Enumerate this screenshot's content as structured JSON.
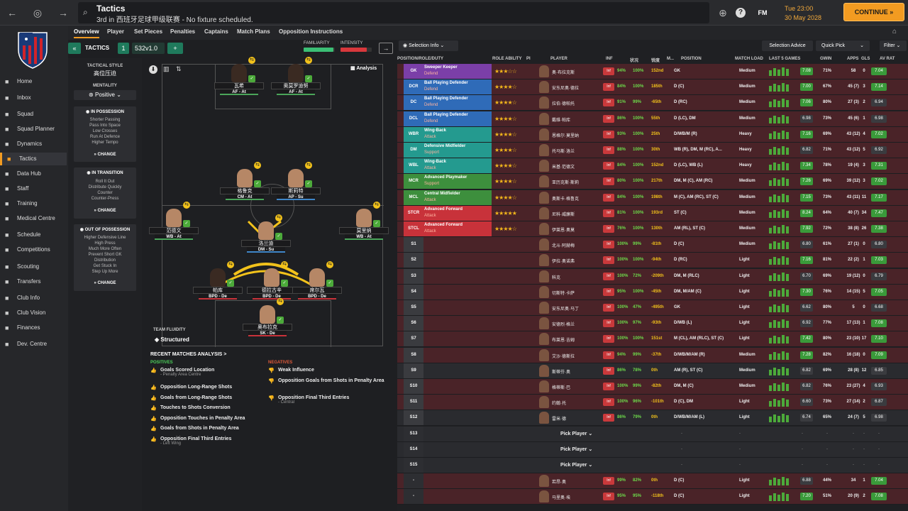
{
  "topbar": {
    "title": "Tactics",
    "subtitle": "3rd in 西班牙足球甲级联赛 - No fixture scheduled.",
    "time": "Tue 23:00",
    "date": "30 May 2028",
    "continue": "CONTINUE",
    "fm": "FM"
  },
  "sidebar": {
    "items": [
      {
        "label": "Home",
        "icon": "home-icon"
      },
      {
        "label": "Inbox",
        "icon": "inbox-icon"
      },
      {
        "label": "Squad",
        "icon": "squad-icon"
      },
      {
        "label": "Squad Planner",
        "icon": "planner-icon"
      },
      {
        "label": "Dynamics",
        "icon": "dynamics-icon"
      },
      {
        "label": "Tactics",
        "icon": "tactics-icon",
        "active": true
      },
      {
        "label": "Data Hub",
        "icon": "data-hub-icon"
      },
      {
        "label": "Staff",
        "icon": "staff-icon"
      },
      {
        "label": "Training",
        "icon": "training-icon"
      },
      {
        "label": "Medical Centre",
        "icon": "medical-icon"
      },
      {
        "label": "Schedule",
        "icon": "schedule-icon"
      },
      {
        "label": "Competitions",
        "icon": "trophy-icon"
      },
      {
        "label": "Scouting",
        "icon": "scouting-icon"
      },
      {
        "label": "Transfers",
        "icon": "transfers-icon"
      },
      {
        "label": "Club Info",
        "icon": "club-info-icon"
      },
      {
        "label": "Club Vision",
        "icon": "vision-icon"
      },
      {
        "label": "Finances",
        "icon": "finances-icon"
      },
      {
        "label": "Dev. Centre",
        "icon": "dev-centre-icon"
      }
    ]
  },
  "tabs": [
    "Overview",
    "Player",
    "Set Pieces",
    "Penalties",
    "Captains",
    "Match Plans",
    "Opposition Instructions"
  ],
  "tacbar": {
    "label": "TACTICS",
    "slot": "1",
    "formation": "532v1.0",
    "familiarity": "FAMILIARITY",
    "intensity": "INTENSITY",
    "familiarity_level": 0.95,
    "intensity_level": 0.85,
    "selection_info": "Selection Info",
    "selection_advice": "Selection Advice",
    "quick_pick": "Quick Pick",
    "filter": "Filter",
    "analysis": "Analysis"
  },
  "leftpanel": {
    "style_h": "TACTICAL STYLE",
    "style_v": "高位压迫",
    "mentality_h": "MENTALITY",
    "mentality_v": "Positive",
    "in_possession": {
      "title": "IN POSSESSION",
      "items": [
        "Shorter Passing",
        "Pass Into Space",
        "Low Crosses",
        "Run At Defence",
        "Higher Tempo"
      ]
    },
    "in_transition": {
      "title": "IN TRANSITION",
      "items": [
        "Roll It Out",
        "Distribute Quickly",
        "Counter",
        "Counter-Press"
      ]
    },
    "out_of_possession": {
      "title": "OUT OF POSSESSION",
      "items": [
        "Higher Defensive Line",
        "High Press",
        "Much More Often",
        "Prevent Short GK",
        "Distribution",
        "Get Stuck In",
        "Step Up More"
      ]
    },
    "change": "CHANGE"
  },
  "pitch": {
    "fluidity_h": "TEAM FLUIDITY",
    "fluidity_v": "Structured",
    "players": [
      {
        "name": "瓦希",
        "role": "AF - At"
      },
      {
        "name": "奥莫罗迪努",
        "role": "AF - At"
      },
      {
        "name": "格鲁克",
        "role": "CM - At"
      },
      {
        "name": "斯莉特",
        "role": "AP - Su"
      },
      {
        "name": "范德文",
        "role": "WB - At"
      },
      {
        "name": "洛兰迪",
        "role": "DM - Su"
      },
      {
        "name": "莫里纳",
        "role": "WB - At"
      },
      {
        "name": "帕库",
        "role": "BPD - De"
      },
      {
        "name": "德拉古辛",
        "role": "BPD - De"
      },
      {
        "name": "席尔瓦",
        "role": "BPD - De"
      },
      {
        "name": "奥布拉克",
        "role": "SK - De"
      }
    ]
  },
  "analysis": {
    "title": "RECENT MATCHES ANALYSIS >",
    "pos_title": "POSITIVES",
    "neg_title": "NEGATIVES",
    "positives": [
      {
        "t": "Goals Scored Location",
        "s": "- Penalty Area Centre"
      },
      {
        "t": "Opposition Long-Range Shots",
        "s": ""
      },
      {
        "t": "Goals from Long-Range Shots",
        "s": ""
      },
      {
        "t": "Touches to Shots Conversion",
        "s": ""
      },
      {
        "t": "Opposition Touches in Penalty Area",
        "s": ""
      },
      {
        "t": "Goals from Shots in Penalty Area",
        "s": ""
      },
      {
        "t": "Opposition Final Third Entries",
        "s": "- Left Wing"
      }
    ],
    "negatives": [
      {
        "t": "Weak Influence",
        "s": ""
      },
      {
        "t": "Opposition Goals from Shots in Penalty Area",
        "s": ""
      },
      {
        "t": "Opposition Final Third Entries",
        "s": "- Central"
      }
    ]
  },
  "table": {
    "headers": [
      "POSITION/ROLE/DUTY",
      "ROLE ABILITY",
      "PI",
      "PLAYER",
      "INF",
      "状况",
      "锐度",
      "M...",
      "POSITION",
      "MATCH LOAD",
      "LAST 5 GAMES",
      "GWIN",
      "APPS",
      "GLS",
      "AV RAT"
    ],
    "rows": [
      {
        "pos": "GK",
        "role": "Sweeper Keeper",
        "duty": "Defend",
        "color": "#7b3fa8",
        "stars": "★★★☆☆",
        "name": "奥·布拉克斯",
        "cond": "94%",
        "sharp": "100%",
        "d": "152nd",
        "ppos": "GK",
        "load": "Medium",
        "avr": "7.08",
        "gw": "71%",
        "apps": "58",
        "gls": "0",
        "avrat": "7.04"
      },
      {
        "pos": "DCR",
        "role": "Ball Playing Defender",
        "duty": "Defend",
        "color": "#2f6bb8",
        "stars": "★★★★☆",
        "name": "安东尼奥·德拉",
        "cond": "84%",
        "sharp": "100%",
        "d": "185th",
        "ppos": "D (C)",
        "load": "Medium",
        "avr": "7.00",
        "gw": "67%",
        "apps": "45 (7)",
        "gls": "3",
        "avrat": "7.14"
      },
      {
        "pos": "DC",
        "role": "Ball Playing Defender",
        "duty": "Defend",
        "color": "#2f6bb8",
        "stars": "★★★★☆",
        "name": "拉伯·德帕托",
        "cond": "91%",
        "sharp": "99%",
        "d": "-65th",
        "ppos": "D (RC)",
        "load": "Medium",
        "avr": "7.06",
        "gw": "80%",
        "apps": "27 (3)",
        "gls": "2",
        "avrat": "6.94"
      },
      {
        "pos": "DCL",
        "role": "Ball Playing Defender",
        "duty": "Defend",
        "color": "#2f6bb8",
        "stars": "★★★★☆",
        "name": "戴维·帕库",
        "cond": "86%",
        "sharp": "100%",
        "d": "55th",
        "ppos": "D (LC), DM",
        "load": "Medium",
        "avr": "6.98",
        "gw": "73%",
        "apps": "45 (6)",
        "gls": "1",
        "avrat": "6.98"
      },
      {
        "pos": "WBR",
        "role": "Wing-Back",
        "duty": "Attack",
        "color": "#249a8f",
        "stars": "★★★★☆",
        "name": "恩格尔·莫里纳",
        "cond": "93%",
        "sharp": "100%",
        "d": "25th",
        "ppos": "D/WB/M (R)",
        "load": "Heavy",
        "avr": "7.16",
        "gw": "69%",
        "apps": "43 (12)",
        "gls": "4",
        "avrat": "7.02"
      },
      {
        "pos": "DM",
        "role": "Defensive Midfielder",
        "duty": "Support",
        "color": "#249a8f",
        "stars": "★★★★☆",
        "name": "托马斯·洛兰",
        "cond": "88%",
        "sharp": "100%",
        "d": "30th",
        "ppos": "WB (R), DM, M (RC), A...",
        "load": "Heavy",
        "avr": "6.82",
        "gw": "71%",
        "apps": "43 (12)",
        "gls": "5",
        "avrat": "6.92"
      },
      {
        "pos": "WBL",
        "role": "Wing-Back",
        "duty": "Attack",
        "color": "#249a8f",
        "stars": "★★★★☆",
        "name": "米基·范德文",
        "cond": "84%",
        "sharp": "100%",
        "d": "152nd",
        "ppos": "D (LC), WB (L)",
        "load": "Heavy",
        "avr": "7.34",
        "gw": "78%",
        "apps": "19 (4)",
        "gls": "3",
        "avrat": "7.31"
      },
      {
        "pos": "MCR",
        "role": "Advanced Playmaker",
        "duty": "Support",
        "color": "#3d8f3d",
        "stars": "★★★★☆",
        "name": "亚历克斯·斯莉",
        "cond": "80%",
        "sharp": "100%",
        "d": "217th",
        "ppos": "DM, M (C), AM (RC)",
        "load": "Medium",
        "avr": "7.26",
        "gw": "69%",
        "apps": "39 (12)",
        "gls": "3",
        "avrat": "7.02"
      },
      {
        "pos": "MCL",
        "role": "Central Midfielder",
        "duty": "Attack",
        "color": "#3d8f3d",
        "stars": "★★★★☆",
        "name": "奥斯卡·格鲁克",
        "cond": "84%",
        "sharp": "100%",
        "d": "198th",
        "ppos": "M (C), AM (RC), ST (C)",
        "load": "Medium",
        "avr": "7.15",
        "gw": "73%",
        "apps": "43 (11)",
        "gls": "11",
        "avrat": "7.17"
      },
      {
        "pos": "STCR",
        "role": "Advanced Forward",
        "duty": "Attack",
        "color": "#c8323a",
        "stars": "★★★★★",
        "name": "尼科·威廉斯",
        "cond": "81%",
        "sharp": "100%",
        "d": "193rd",
        "ppos": "ST (C)",
        "load": "Medium",
        "avr": "8.24",
        "gw": "64%",
        "apps": "40 (7)",
        "gls": "34",
        "avrat": "7.47"
      },
      {
        "pos": "STCL",
        "role": "Advanced Forward",
        "duty": "Attack",
        "color": "#c8323a",
        "stars": "★★★★☆",
        "name": "伊莱恩·奥莫",
        "cond": "76%",
        "sharp": "100%",
        "d": "130th",
        "ppos": "AM (RL), ST (C)",
        "load": "Medium",
        "avr": "7.92",
        "gw": "72%",
        "apps": "38 (8)",
        "gls": "26",
        "avrat": "7.38"
      },
      {
        "pos": "S1",
        "name": "北斗·阿赫梅",
        "cond": "100%",
        "sharp": "99%",
        "d": "-81th",
        "ppos": "D (C)",
        "load": "Medium",
        "avr": "6.80",
        "gw": "61%",
        "apps": "27 (1)",
        "gls": "0",
        "avrat": "6.80"
      },
      {
        "pos": "S2",
        "name": "伊拉·奥诺弗",
        "cond": "100%",
        "sharp": "100%",
        "d": "-94th",
        "ppos": "D (RC)",
        "load": "Light",
        "avr": "7.16",
        "gw": "81%",
        "apps": "22 (2)",
        "gls": "1",
        "avrat": "7.03"
      },
      {
        "pos": "S3",
        "name": "科克",
        "cond": "100%",
        "sharp": "72%",
        "d": "-209th",
        "ppos": "DM, M (RLC)",
        "load": "Light",
        "avr": "6.70",
        "gw": "69%",
        "apps": "19 (12)",
        "gls": "0",
        "avrat": "6.79"
      },
      {
        "pos": "S4",
        "name": "切斯特·卡萨",
        "cond": "95%",
        "sharp": "100%",
        "d": "-45th",
        "ppos": "DM, M/AM (C)",
        "load": "Light",
        "avr": "7.30",
        "gw": "76%",
        "apps": "14 (15)",
        "gls": "5",
        "avrat": "7.05"
      },
      {
        "pos": "S5",
        "name": "安东尼奥·马丁",
        "cond": "100%",
        "sharp": "47%",
        "d": "-495th",
        "ppos": "GK",
        "load": "Light",
        "avr": "6.62",
        "gw": "80%",
        "apps": "5",
        "gls": "0",
        "avrat": "6.68"
      },
      {
        "pos": "S6",
        "name": "安德烈·格兰",
        "cond": "100%",
        "sharp": "97%",
        "d": "-93th",
        "ppos": "D/WB (L)",
        "load": "Light",
        "avr": "6.92",
        "gw": "77%",
        "apps": "17 (13)",
        "gls": "1",
        "avrat": "7.08"
      },
      {
        "pos": "S7",
        "name": "布莱恩·吉姆",
        "cond": "100%",
        "sharp": "100%",
        "d": "151st",
        "ppos": "M (CL), AM (RLC), ST (C)",
        "load": "Light",
        "avr": "7.42",
        "gw": "80%",
        "apps": "23 (10)",
        "gls": "17",
        "avrat": "7.10"
      },
      {
        "pos": "S8",
        "name": "艾沙·德斯拉",
        "cond": "94%",
        "sharp": "99%",
        "d": "-37th",
        "ppos": "D/WB/M/AM (R)",
        "load": "Medium",
        "avr": "7.28",
        "gw": "82%",
        "apps": "16 (18)",
        "gls": "0",
        "avrat": "7.09"
      },
      {
        "pos": "S9",
        "name": "斯蒂芬·奥",
        "cond": "86%",
        "sharp": "78%",
        "d": "0th",
        "ppos": "AM (R), ST (C)",
        "load": "Medium",
        "avr": "6.82",
        "gw": "69%",
        "apps": "28 (8)",
        "gls": "12",
        "avrat": "6.85"
      },
      {
        "pos": "S10",
        "name": "格蒂斯·巴",
        "cond": "100%",
        "sharp": "99%",
        "d": "-82th",
        "ppos": "DM, M (C)",
        "load": "Medium",
        "avr": "6.82",
        "gw": "76%",
        "apps": "23 (27)",
        "gls": "4",
        "avrat": "6.93"
      },
      {
        "pos": "S11",
        "name": "约翰·托",
        "cond": "100%",
        "sharp": "96%",
        "d": "-101th",
        "ppos": "D (C), DM",
        "load": "Light",
        "avr": "6.60",
        "gw": "73%",
        "apps": "27 (14)",
        "gls": "2",
        "avrat": "6.87"
      },
      {
        "pos": "S12",
        "name": "雷米·德",
        "cond": "86%",
        "sharp": "79%",
        "d": "0th",
        "ppos": "D/WB/M/AM (L)",
        "load": "Light",
        "avr": "6.74",
        "gw": "65%",
        "apps": "24 (7)",
        "gls": "5",
        "avrat": "6.98"
      },
      {
        "pos": "S13",
        "pick": "Pick Player"
      },
      {
        "pos": "S14",
        "pick": "Pick Player"
      },
      {
        "pos": "S15",
        "pick": "Pick Player"
      },
      {
        "pos": "-",
        "name": "若昂·奥",
        "cond": "99%",
        "sharp": "82%",
        "d": "0th",
        "ppos": "D (C)",
        "load": "Light",
        "avr": "6.88",
        "gw": "44%",
        "apps": "34",
        "gls": "1",
        "avrat": "7.04"
      },
      {
        "pos": "-",
        "name": "马里奥·埃",
        "cond": "95%",
        "sharp": "95%",
        "d": "-118th",
        "ppos": "D (C)",
        "load": "Light",
        "avr": "7.20",
        "gw": "51%",
        "apps": "20 (9)",
        "gls": "2",
        "avrat": "7.08"
      }
    ]
  }
}
